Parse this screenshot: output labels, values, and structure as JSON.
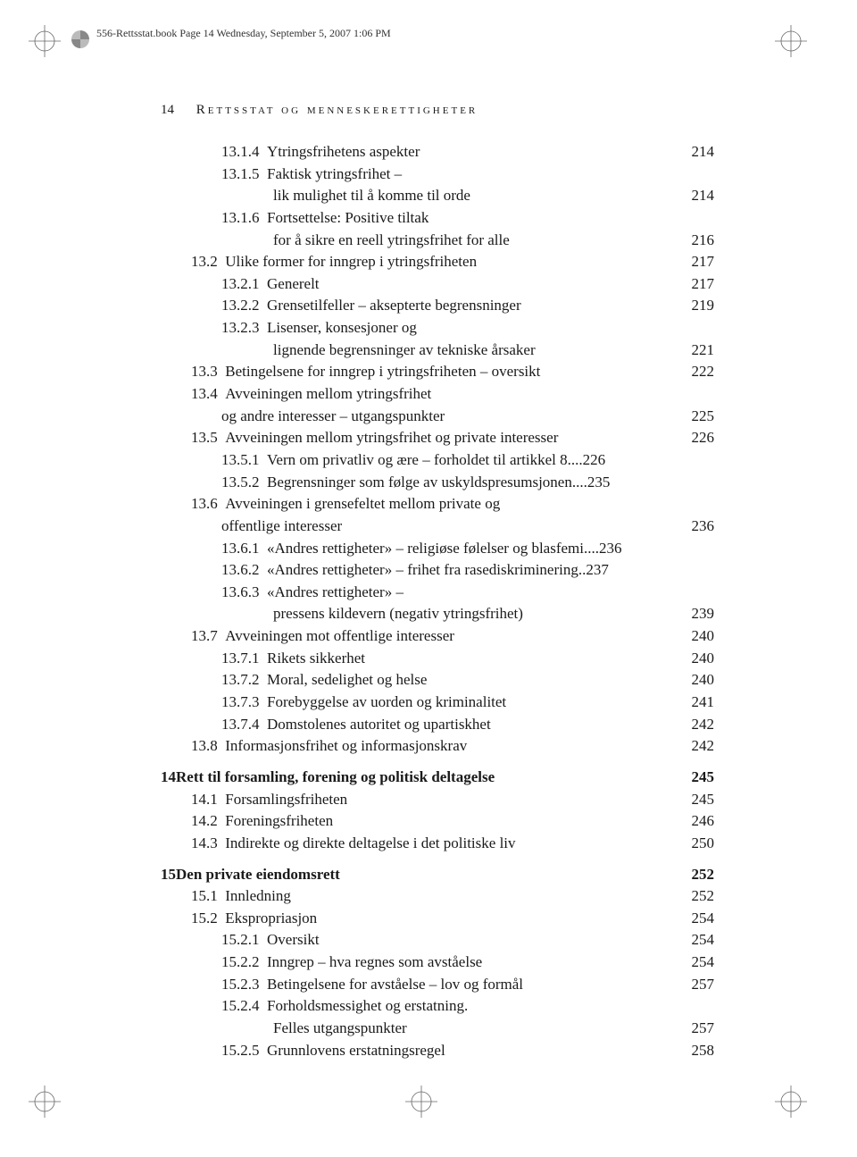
{
  "page": {
    "header": "556-Rettsstat.book  Page 14  Wednesday, September 5, 2007  1:06 PM",
    "page_number": "14",
    "running_title": "Rettsstat og menneskerettigheter",
    "crop_mark_color": "#666666",
    "text_color": "#1a1a1a",
    "background": "#ffffff"
  },
  "toc": [
    {
      "label": "13.1.4",
      "title": "Ytringsfrihetens aspekter",
      "page": "214",
      "indent": 2
    },
    {
      "label": "13.1.5",
      "title": "Faktisk ytringsfrihet –",
      "cont": "lik mulighet til å komme til orde",
      "page": "214",
      "indent": 2
    },
    {
      "label": "13.1.6",
      "title": "Fortsettelse: Positive tiltak",
      "cont": "for å sikre en reell ytringsfrihet for alle",
      "page": "216",
      "indent": 2
    },
    {
      "label": "13.2",
      "title": "Ulike former for inngrep i ytringsfriheten",
      "page": "217",
      "indent": 1
    },
    {
      "label": "13.2.1",
      "title": "Generelt",
      "page": "217",
      "indent": 2
    },
    {
      "label": "13.2.2",
      "title": "Grensetilfeller – aksepterte begrensninger",
      "page": "219",
      "indent": 2
    },
    {
      "label": "13.2.3",
      "title": "Lisenser, konsesjoner og",
      "cont": "lignende begrensninger av tekniske årsaker",
      "page": "221",
      "indent": 2
    },
    {
      "label": "13.3",
      "title": "Betingelsene for inngrep i ytringsfriheten – oversikt",
      "page": "222",
      "indent": 1
    },
    {
      "label": "13.4",
      "title": "Avveiningen mellom ytringsfrihet",
      "cont": "og andre interesser – utgangspunkter",
      "page": "225",
      "indent": 1
    },
    {
      "label": "13.5",
      "title": "Avveiningen mellom ytringsfrihet og private interesser",
      "page": "226",
      "indent": 1
    },
    {
      "label": "13.5.1",
      "title": "Vern om privatliv og ære – forholdet til artikkel 8",
      "page": "226",
      "indent": 2,
      "tight": true
    },
    {
      "label": "13.5.2",
      "title": "Begrensninger som følge av uskyldspresumsjonen",
      "page": "235",
      "indent": 2,
      "tight": true
    },
    {
      "label": "13.6",
      "title": "Avveiningen i grensefeltet mellom private og",
      "cont": "offentlige interesser",
      "page": "236",
      "indent": 1
    },
    {
      "label": "13.6.1",
      "title": "«Andres rettigheter» – religiøse følelser og blasfemi",
      "page": "236",
      "indent": 2,
      "tight": true
    },
    {
      "label": "13.6.2",
      "title": "«Andres rettigheter» – frihet fra rasediskriminering",
      "page": "237",
      "indent": 2,
      "tight": true,
      "leader_dots": ".."
    },
    {
      "label": "13.6.3",
      "title": "«Andres rettigheter» –",
      "cont": "pressens kildevern (negativ ytringsfrihet)",
      "page": "239",
      "indent": 2
    },
    {
      "label": "13.7",
      "title": "Avveiningen mot offentlige interesser",
      "page": "240",
      "indent": 1
    },
    {
      "label": "13.7.1",
      "title": "Rikets sikkerhet",
      "page": "240",
      "indent": 2
    },
    {
      "label": "13.7.2",
      "title": "Moral, sedelighet og helse",
      "page": "240",
      "indent": 2
    },
    {
      "label": "13.7.3",
      "title": "Forebyggelse av uorden og kriminalitet",
      "page": "241",
      "indent": 2
    },
    {
      "label": "13.7.4",
      "title": "Domstolenes autoritet og upartiskhet",
      "page": "242",
      "indent": 2
    },
    {
      "label": "13.8",
      "title": "Informasjonsfrihet og informasjonskrav",
      "page": "242",
      "indent": 1
    },
    {
      "gap": true
    },
    {
      "label": "14",
      "title": "Rett til forsamling, forening og politisk deltagelse",
      "page": "245",
      "indent": 0,
      "bold": true
    },
    {
      "label": "14.1",
      "title": "Forsamlingsfriheten",
      "page": "245",
      "indent": 1
    },
    {
      "label": "14.2",
      "title": "Foreningsfriheten",
      "page": "246",
      "indent": 1
    },
    {
      "label": "14.3",
      "title": "Indirekte og direkte deltagelse i det politiske liv",
      "page": "250",
      "indent": 1
    },
    {
      "gap": true
    },
    {
      "label": "15",
      "title": "Den private eiendomsrett",
      "page": "252",
      "indent": 0,
      "bold": true
    },
    {
      "label": "15.1",
      "title": "Innledning",
      "page": "252",
      "indent": 1
    },
    {
      "label": "15.2",
      "title": "Ekspropriasjon",
      "page": "254",
      "indent": 1
    },
    {
      "label": "15.2.1",
      "title": "Oversikt",
      "page": "254",
      "indent": 2
    },
    {
      "label": "15.2.2",
      "title": "Inngrep – hva regnes som avståelse",
      "page": "254",
      "indent": 2
    },
    {
      "label": "15.2.3",
      "title": "Betingelsene for avståelse – lov og formål",
      "page": "257",
      "indent": 2
    },
    {
      "label": "15.2.4",
      "title": "Forholdsmessighet og erstatning.",
      "cont": "Felles utgangspunkter",
      "page": "257",
      "indent": 2
    },
    {
      "label": "15.2.5",
      "title": "Grunnlovens erstatningsregel",
      "page": "258",
      "indent": 2
    }
  ]
}
